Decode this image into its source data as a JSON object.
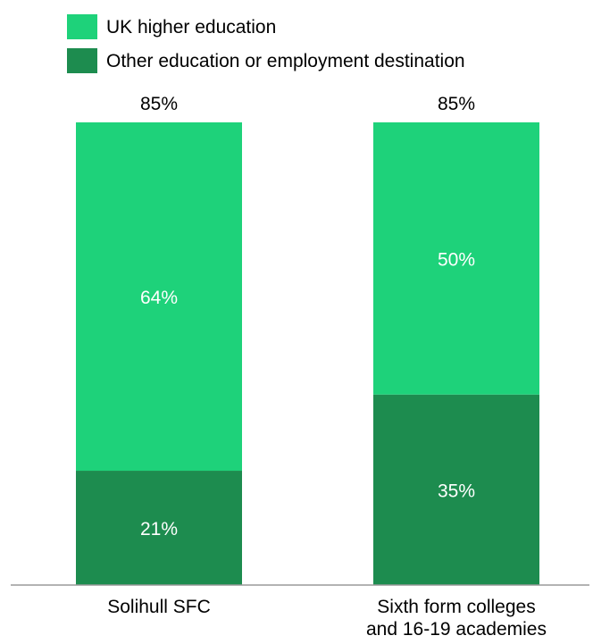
{
  "chart_data": {
    "type": "bar",
    "stacked": true,
    "categories": [
      [
        "Solihull SFC"
      ],
      [
        "Sixth form colleges",
        "and 16-19 academies"
      ]
    ],
    "series": [
      {
        "name": "Other education or employment destination",
        "values": [
          21,
          35
        ],
        "color": "#1d8c4f"
      },
      {
        "name": "UK higher education",
        "values": [
          64,
          50
        ],
        "color": "#1ed27a"
      }
    ],
    "totals": [
      85,
      85
    ],
    "value_suffix": "%",
    "legend_position": "top-left",
    "ylim": [
      0,
      85
    ],
    "grid": false,
    "title": "",
    "xlabel": "",
    "ylabel": ""
  }
}
